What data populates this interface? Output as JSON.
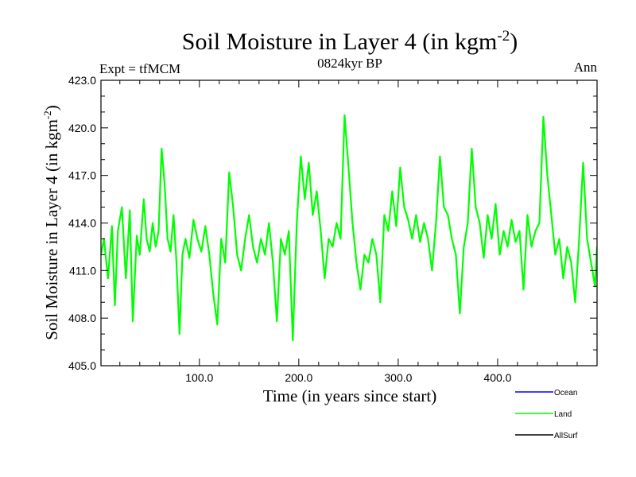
{
  "chart_data": {
    "type": "line",
    "title": "Soil Moisture in Layer 4 (in kgm",
    "title_sup": "-2",
    "title_close": ")",
    "subtitle": "0824kyr BP",
    "left_label": "Expt = tfMCM",
    "right_label": "Ann",
    "xlabel": "Time (in years since start)",
    "ylabel": "Soil Moisture in Layer 4 (in kgm",
    "ylabel_sup": "-2",
    "ylabel_close": ")",
    "xlim": [
      1,
      500
    ],
    "ylim": [
      405.0,
      423.0
    ],
    "x_ticks": [
      100,
      200,
      300,
      400
    ],
    "x_tick_labels": [
      "100.0",
      "200.0",
      "300.0",
      "400.0"
    ],
    "y_ticks": [
      405,
      408,
      411,
      414,
      417,
      420,
      423
    ],
    "y_tick_labels": [
      "405.0",
      "408.0",
      "411.0",
      "414.0",
      "417.0",
      "420.0",
      "423.0"
    ],
    "legend": [
      {
        "name": "Ocean",
        "color": "#0000ff"
      },
      {
        "name": "Land",
        "color": "#00ff00"
      },
      {
        "name": "AllSurf",
        "color": "#000000"
      }
    ],
    "series": [
      {
        "name": "Land",
        "color": "#00ff00",
        "points": [
          [
            1,
            412.0
          ],
          [
            4,
            413.0
          ],
          [
            8,
            410.5
          ],
          [
            12,
            413.8
          ],
          [
            15,
            408.8
          ],
          [
            18,
            413.5
          ],
          [
            22,
            415.0
          ],
          [
            26,
            410.5
          ],
          [
            30,
            414.8
          ],
          [
            33,
            407.8
          ],
          [
            37,
            413.2
          ],
          [
            40,
            412.0
          ],
          [
            44,
            415.5
          ],
          [
            47,
            413.0
          ],
          [
            50,
            412.2
          ],
          [
            53,
            414.0
          ],
          [
            56,
            412.5
          ],
          [
            59,
            413.5
          ],
          [
            62,
            418.7
          ],
          [
            65,
            416.5
          ],
          [
            68,
            413.0
          ],
          [
            71,
            412.2
          ],
          [
            74,
            414.5
          ],
          [
            77,
            411.5
          ],
          [
            80,
            407.0
          ],
          [
            83,
            412.0
          ],
          [
            86,
            413.0
          ],
          [
            90,
            411.8
          ],
          [
            94,
            414.2
          ],
          [
            98,
            413.0
          ],
          [
            102,
            412.2
          ],
          [
            106,
            413.8
          ],
          [
            110,
            412.0
          ],
          [
            114,
            409.5
          ],
          [
            118,
            407.6
          ],
          [
            122,
            413.0
          ],
          [
            126,
            411.5
          ],
          [
            130,
            417.2
          ],
          [
            134,
            415.0
          ],
          [
            138,
            412.0
          ],
          [
            142,
            411.0
          ],
          [
            146,
            413.0
          ],
          [
            150,
            414.5
          ],
          [
            154,
            412.5
          ],
          [
            158,
            411.5
          ],
          [
            162,
            413.0
          ],
          [
            166,
            412.0
          ],
          [
            170,
            414.0
          ],
          [
            174,
            411.5
          ],
          [
            178,
            407.8
          ],
          [
            182,
            413.0
          ],
          [
            186,
            412.0
          ],
          [
            190,
            413.5
          ],
          [
            194,
            406.6
          ],
          [
            198,
            414.0
          ],
          [
            202,
            418.2
          ],
          [
            206,
            415.5
          ],
          [
            210,
            417.8
          ],
          [
            214,
            414.5
          ],
          [
            218,
            416.0
          ],
          [
            222,
            413.5
          ],
          [
            226,
            410.5
          ],
          [
            230,
            413.0
          ],
          [
            234,
            412.5
          ],
          [
            238,
            414.0
          ],
          [
            242,
            413.0
          ],
          [
            246,
            420.8
          ],
          [
            250,
            417.5
          ],
          [
            254,
            414.0
          ],
          [
            258,
            411.5
          ],
          [
            262,
            409.8
          ],
          [
            266,
            412.0
          ],
          [
            270,
            411.5
          ],
          [
            274,
            413.0
          ],
          [
            278,
            412.0
          ],
          [
            282,
            409.0
          ],
          [
            286,
            414.5
          ],
          [
            290,
            413.5
          ],
          [
            294,
            416.0
          ],
          [
            298,
            413.8
          ],
          [
            302,
            417.5
          ],
          [
            306,
            415.0
          ],
          [
            310,
            414.2
          ],
          [
            314,
            413.0
          ],
          [
            318,
            414.5
          ],
          [
            322,
            412.8
          ],
          [
            326,
            414.0
          ],
          [
            330,
            413.0
          ],
          [
            334,
            411.0
          ],
          [
            338,
            414.0
          ],
          [
            342,
            418.2
          ],
          [
            346,
            415.0
          ],
          [
            350,
            414.5
          ],
          [
            354,
            413.0
          ],
          [
            358,
            412.0
          ],
          [
            362,
            408.3
          ],
          [
            366,
            412.5
          ],
          [
            370,
            414.0
          ],
          [
            374,
            418.7
          ],
          [
            378,
            415.0
          ],
          [
            382,
            414.0
          ],
          [
            386,
            411.8
          ],
          [
            390,
            414.5
          ],
          [
            394,
            413.0
          ],
          [
            398,
            415.2
          ],
          [
            402,
            412.0
          ],
          [
            406,
            413.5
          ],
          [
            410,
            412.5
          ],
          [
            414,
            414.2
          ],
          [
            418,
            412.8
          ],
          [
            422,
            413.5
          ],
          [
            426,
            409.8
          ],
          [
            430,
            414.5
          ],
          [
            434,
            412.5
          ],
          [
            438,
            413.5
          ],
          [
            442,
            414.0
          ],
          [
            446,
            420.7
          ],
          [
            450,
            417.0
          ],
          [
            454,
            414.5
          ],
          [
            458,
            412.0
          ],
          [
            462,
            413.0
          ],
          [
            466,
            410.5
          ],
          [
            470,
            412.5
          ],
          [
            474,
            411.5
          ],
          [
            478,
            409.0
          ],
          [
            482,
            413.0
          ],
          [
            486,
            417.8
          ],
          [
            490,
            413.0
          ],
          [
            494,
            411.5
          ],
          [
            498,
            410.0
          ],
          [
            500,
            412.5
          ]
        ]
      }
    ]
  }
}
